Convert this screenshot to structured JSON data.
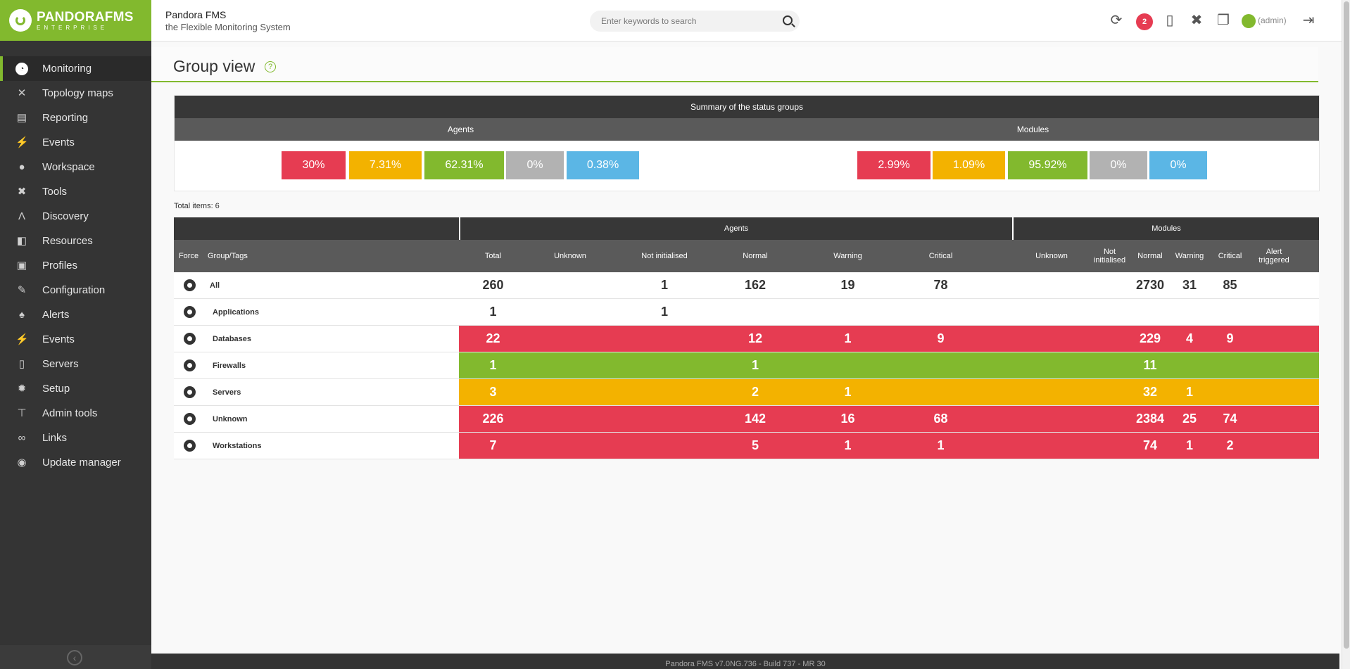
{
  "header": {
    "brand": "PANDORAFMS",
    "brand_sub": "ENTERPRISE",
    "app_title": "Pandora FMS",
    "app_subtitle": "the Flexible Monitoring System",
    "search_placeholder": "Enter keywords to search",
    "notification_count": "2",
    "user": "(admin)"
  },
  "sidebar": {
    "items": [
      {
        "label": "Monitoring",
        "icon": "monitoring-icon",
        "glyph": "◔"
      },
      {
        "label": "Topology maps",
        "icon": "topology-icon",
        "glyph": "✕"
      },
      {
        "label": "Reporting",
        "icon": "reporting-icon",
        "glyph": "▤"
      },
      {
        "label": "Events",
        "icon": "events-icon",
        "glyph": "⚡"
      },
      {
        "label": "Workspace",
        "icon": "workspace-icon",
        "glyph": "●"
      },
      {
        "label": "Tools",
        "icon": "tools-icon",
        "glyph": "✖"
      },
      {
        "label": "Discovery",
        "icon": "discovery-icon",
        "glyph": "Λ"
      },
      {
        "label": "Resources",
        "icon": "resources-icon",
        "glyph": "◧"
      },
      {
        "label": "Profiles",
        "icon": "profiles-icon",
        "glyph": "▣"
      },
      {
        "label": "Configuration",
        "icon": "configuration-icon",
        "glyph": "✎"
      },
      {
        "label": "Alerts",
        "icon": "alerts-icon",
        "glyph": "♠"
      },
      {
        "label": "Events",
        "icon": "events-admin-icon",
        "glyph": "⚡"
      },
      {
        "label": "Servers",
        "icon": "servers-icon",
        "glyph": "▯"
      },
      {
        "label": "Setup",
        "icon": "setup-icon",
        "glyph": "✹"
      },
      {
        "label": "Admin tools",
        "icon": "admin-tools-icon",
        "glyph": "⊤"
      },
      {
        "label": "Links",
        "icon": "links-icon",
        "glyph": "∞"
      },
      {
        "label": "Update manager",
        "icon": "update-manager-icon",
        "glyph": "◉"
      }
    ]
  },
  "page": {
    "title": "Group view",
    "help": "?",
    "total_items": "Total items: 6",
    "footer": "Pandora FMS v7.0NG.736 - Build 737 - MR 30"
  },
  "summary": {
    "title": "Summary of the status groups",
    "agents_label": "Agents",
    "modules_label": "Modules",
    "agents": [
      "30%",
      "7.31%",
      "62.31%",
      "0%",
      "0.38%"
    ],
    "modules": [
      "2.99%",
      "1.09%",
      "95.92%",
      "0%",
      "0%"
    ]
  },
  "colors": {
    "critical": "#e63c52",
    "warning": "#f3b200",
    "normal": "#82b92e",
    "not_init": "#b2b2b2",
    "unknown": "#5bb6e5",
    "brand": "#82b92e"
  },
  "table": {
    "group_agents": "Agents",
    "group_modules": "Modules",
    "headers": {
      "force": "Force",
      "group": "Group/Tags",
      "total": "Total",
      "unknown": "Unknown",
      "not_init": "Not initialised",
      "normal": "Normal",
      "warning": "Warning",
      "critical": "Critical",
      "m_unknown": "Unknown",
      "m_not_init": "Not initialised",
      "m_normal": "Normal",
      "m_warning": "Warning",
      "m_critical": "Critical",
      "m_alert": "Alert triggered"
    },
    "rows": [
      {
        "name": "All",
        "status": "none",
        "total": "260",
        "unknown": "",
        "not_init": "1",
        "normal": "162",
        "warning": "19",
        "critical": "78",
        "m_unknown": "",
        "m_not_init": "",
        "m_normal": "2730",
        "m_warning": "31",
        "m_critical": "85",
        "m_alert": ""
      },
      {
        "name": "Applications",
        "status": "none",
        "total": "1",
        "unknown": "",
        "not_init": "1",
        "normal": "",
        "warning": "",
        "critical": "",
        "m_unknown": "",
        "m_not_init": "",
        "m_normal": "",
        "m_warning": "",
        "m_critical": "",
        "m_alert": ""
      },
      {
        "name": "Databases",
        "status": "critical",
        "total": "22",
        "unknown": "",
        "not_init": "",
        "normal": "12",
        "warning": "1",
        "critical": "9",
        "m_unknown": "",
        "m_not_init": "",
        "m_normal": "229",
        "m_warning": "4",
        "m_critical": "9",
        "m_alert": ""
      },
      {
        "name": "Firewalls",
        "status": "normal",
        "total": "1",
        "unknown": "",
        "not_init": "",
        "normal": "1",
        "warning": "",
        "critical": "",
        "m_unknown": "",
        "m_not_init": "",
        "m_normal": "11",
        "m_warning": "",
        "m_critical": "",
        "m_alert": ""
      },
      {
        "name": "Servers",
        "status": "warning",
        "total": "3",
        "unknown": "",
        "not_init": "",
        "normal": "2",
        "warning": "1",
        "critical": "",
        "m_unknown": "",
        "m_not_init": "",
        "m_normal": "32",
        "m_warning": "1",
        "m_critical": "",
        "m_alert": ""
      },
      {
        "name": "Unknown",
        "status": "critical",
        "total": "226",
        "unknown": "",
        "not_init": "",
        "normal": "142",
        "warning": "16",
        "critical": "68",
        "m_unknown": "",
        "m_not_init": "",
        "m_normal": "2384",
        "m_warning": "25",
        "m_critical": "74",
        "m_alert": ""
      },
      {
        "name": "Workstations",
        "status": "critical",
        "total": "7",
        "unknown": "",
        "not_init": "",
        "normal": "5",
        "warning": "1",
        "critical": "1",
        "m_unknown": "",
        "m_not_init": "",
        "m_normal": "74",
        "m_warning": "1",
        "m_critical": "2",
        "m_alert": ""
      }
    ]
  }
}
